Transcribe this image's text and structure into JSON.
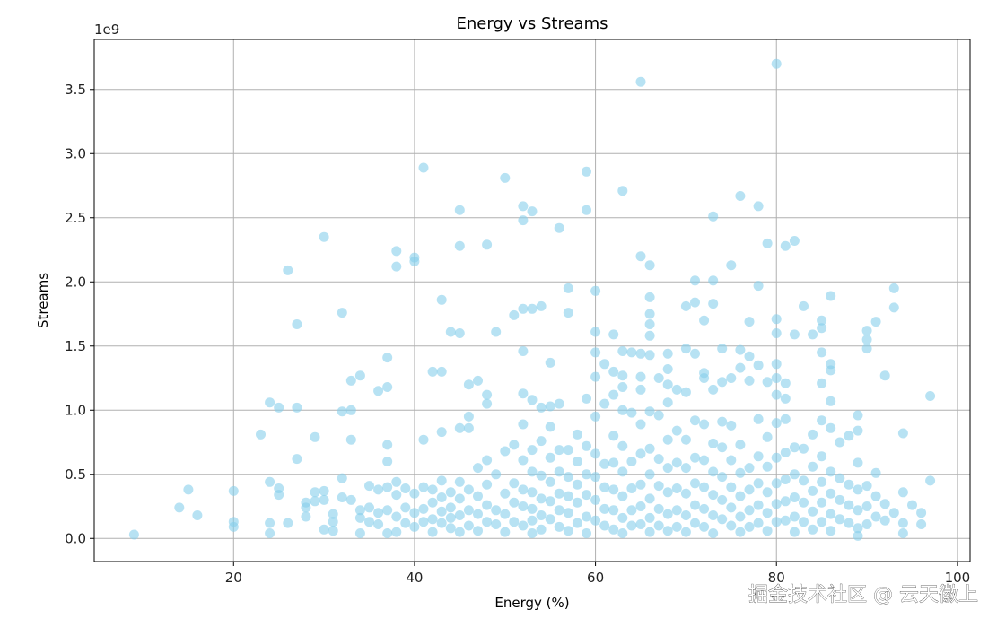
{
  "watermark": "掘金技术社区 @ 云天徽上",
  "chart_data": {
    "type": "scatter",
    "title": "Energy vs Streams",
    "xlabel": "Energy (%)",
    "ylabel": "Streams",
    "y_offset_label": "1e9",
    "xlim": [
      4.6,
      101.4
    ],
    "ylim": [
      -0.18,
      3.89
    ],
    "xticks": [
      20,
      40,
      60,
      80,
      100
    ],
    "xtick_labels": [
      "20",
      "40",
      "60",
      "80",
      "100"
    ],
    "yticks": [
      0.0,
      0.5,
      1.0,
      1.5,
      2.0,
      2.5,
      3.0,
      3.5
    ],
    "ytick_labels": [
      "0.0",
      "0.5",
      "1.0",
      "1.5",
      "2.0",
      "2.5",
      "3.0",
      "3.5"
    ],
    "grid": true,
    "marker_color": "#87ceeb",
    "marker_alpha": 0.6,
    "units": "streams x 1e9",
    "points": [
      [
        9,
        0.03
      ],
      [
        14,
        0.24
      ],
      [
        15,
        0.38
      ],
      [
        16,
        0.18
      ],
      [
        20,
        0.37
      ],
      [
        20,
        0.13
      ],
      [
        20,
        0.09
      ],
      [
        23,
        0.81
      ],
      [
        24,
        1.06
      ],
      [
        24,
        0.44
      ],
      [
        24,
        0.12
      ],
      [
        24,
        0.04
      ],
      [
        25,
        1.02
      ],
      [
        25,
        0.39
      ],
      [
        25,
        0.34
      ],
      [
        26,
        2.09
      ],
      [
        26,
        0.12
      ],
      [
        27,
        1.67
      ],
      [
        27,
        1.02
      ],
      [
        27,
        0.62
      ],
      [
        28,
        0.28
      ],
      [
        28,
        0.24
      ],
      [
        28,
        0.17
      ],
      [
        29,
        0.79
      ],
      [
        29,
        0.36
      ],
      [
        29,
        0.29
      ],
      [
        30,
        2.35
      ],
      [
        30,
        0.37
      ],
      [
        30,
        0.07
      ],
      [
        30,
        0.3
      ],
      [
        31,
        0.19
      ],
      [
        31,
        0.13
      ],
      [
        31,
        0.06
      ],
      [
        32,
        1.76
      ],
      [
        32,
        0.99
      ],
      [
        32,
        0.47
      ],
      [
        32,
        0.32
      ],
      [
        33,
        1.23
      ],
      [
        33,
        1.0
      ],
      [
        33,
        0.77
      ],
      [
        33,
        0.3
      ],
      [
        34,
        1.27
      ],
      [
        34,
        0.22
      ],
      [
        34,
        0.16
      ],
      [
        34,
        0.04
      ],
      [
        35,
        0.41
      ],
      [
        35,
        0.24
      ],
      [
        35,
        0.13
      ],
      [
        36,
        1.15
      ],
      [
        36,
        0.38
      ],
      [
        36,
        0.2
      ],
      [
        36,
        0.11
      ],
      [
        37,
        1.41
      ],
      [
        37,
        1.18
      ],
      [
        37,
        0.73
      ],
      [
        37,
        0.6
      ],
      [
        37,
        0.4
      ],
      [
        37,
        0.22
      ],
      [
        37,
        0.04
      ],
      [
        38,
        2.24
      ],
      [
        38,
        2.12
      ],
      [
        38,
        0.44
      ],
      [
        38,
        0.34
      ],
      [
        38,
        0.17
      ],
      [
        38,
        0.05
      ],
      [
        39,
        0.39
      ],
      [
        39,
        0.24
      ],
      [
        39,
        0.12
      ],
      [
        40,
        2.19
      ],
      [
        40,
        2.16
      ],
      [
        40,
        0.35
      ],
      [
        40,
        0.2
      ],
      [
        40,
        0.09
      ],
      [
        41,
        2.89
      ],
      [
        41,
        0.77
      ],
      [
        41,
        0.4
      ],
      [
        41,
        0.23
      ],
      [
        41,
        0.13
      ],
      [
        42,
        1.3
      ],
      [
        42,
        0.38
      ],
      [
        42,
        0.28
      ],
      [
        42,
        0.15
      ],
      [
        42,
        0.05
      ],
      [
        43,
        1.86
      ],
      [
        43,
        1.3
      ],
      [
        43,
        0.83
      ],
      [
        43,
        0.45
      ],
      [
        43,
        0.32
      ],
      [
        43,
        0.21
      ],
      [
        43,
        0.12
      ],
      [
        44,
        1.61
      ],
      [
        44,
        0.36
      ],
      [
        44,
        0.24
      ],
      [
        44,
        0.16
      ],
      [
        44,
        0.08
      ],
      [
        45,
        2.56
      ],
      [
        45,
        2.28
      ],
      [
        45,
        1.6
      ],
      [
        45,
        0.86
      ],
      [
        45,
        0.44
      ],
      [
        45,
        0.31
      ],
      [
        45,
        0.18
      ],
      [
        45,
        0.05
      ],
      [
        46,
        1.2
      ],
      [
        46,
        0.95
      ],
      [
        46,
        0.86
      ],
      [
        46,
        0.38
      ],
      [
        46,
        0.22
      ],
      [
        46,
        0.1
      ],
      [
        47,
        1.23
      ],
      [
        47,
        0.55
      ],
      [
        47,
        0.33
      ],
      [
        47,
        0.19
      ],
      [
        47,
        0.06
      ],
      [
        48,
        2.29
      ],
      [
        48,
        1.12
      ],
      [
        48,
        1.05
      ],
      [
        48,
        0.61
      ],
      [
        48,
        0.42
      ],
      [
        48,
        0.26
      ],
      [
        48,
        0.13
      ],
      [
        49,
        1.61
      ],
      [
        49,
        0.5
      ],
      [
        49,
        0.22
      ],
      [
        49,
        0.11
      ],
      [
        50,
        2.81
      ],
      [
        50,
        0.68
      ],
      [
        50,
        0.35
      ],
      [
        50,
        0.19
      ],
      [
        50,
        0.05
      ],
      [
        51,
        1.74
      ],
      [
        51,
        0.73
      ],
      [
        51,
        0.43
      ],
      [
        51,
        0.28
      ],
      [
        51,
        0.13
      ],
      [
        52,
        2.59
      ],
      [
        52,
        2.48
      ],
      [
        52,
        1.79
      ],
      [
        52,
        1.46
      ],
      [
        52,
        1.13
      ],
      [
        52,
        0.89
      ],
      [
        52,
        0.61
      ],
      [
        52,
        0.38
      ],
      [
        52,
        0.25
      ],
      [
        52,
        0.1
      ],
      [
        53,
        2.55
      ],
      [
        53,
        1.79
      ],
      [
        53,
        1.08
      ],
      [
        53,
        0.69
      ],
      [
        53,
        0.52
      ],
      [
        53,
        0.36
      ],
      [
        53,
        0.23
      ],
      [
        53,
        0.14
      ],
      [
        53,
        0.04
      ],
      [
        54,
        1.81
      ],
      [
        54,
        1.02
      ],
      [
        54,
        0.76
      ],
      [
        54,
        0.49
      ],
      [
        54,
        0.31
      ],
      [
        54,
        0.18
      ],
      [
        54,
        0.07
      ],
      [
        55,
        1.37
      ],
      [
        55,
        1.03
      ],
      [
        55,
        0.87
      ],
      [
        55,
        0.63
      ],
      [
        55,
        0.44
      ],
      [
        55,
        0.29
      ],
      [
        55,
        0.15
      ],
      [
        56,
        2.42
      ],
      [
        56,
        1.05
      ],
      [
        56,
        0.69
      ],
      [
        56,
        0.52
      ],
      [
        56,
        0.35
      ],
      [
        56,
        0.22
      ],
      [
        56,
        0.09
      ],
      [
        57,
        1.95
      ],
      [
        57,
        1.76
      ],
      [
        57,
        0.69
      ],
      [
        57,
        0.48
      ],
      [
        57,
        0.33
      ],
      [
        57,
        0.2
      ],
      [
        57,
        0.06
      ],
      [
        58,
        0.81
      ],
      [
        58,
        0.6
      ],
      [
        58,
        0.42
      ],
      [
        58,
        0.28
      ],
      [
        58,
        0.12
      ],
      [
        59,
        2.86
      ],
      [
        59,
        2.56
      ],
      [
        59,
        1.09
      ],
      [
        59,
        0.72
      ],
      [
        59,
        0.5
      ],
      [
        59,
        0.34
      ],
      [
        59,
        0.17
      ],
      [
        59,
        0.04
      ],
      [
        60,
        1.93
      ],
      [
        60,
        1.61
      ],
      [
        60,
        1.45
      ],
      [
        60,
        1.26
      ],
      [
        60,
        0.95
      ],
      [
        60,
        0.66
      ],
      [
        60,
        0.48
      ],
      [
        60,
        0.3
      ],
      [
        60,
        0.14
      ],
      [
        61,
        1.36
      ],
      [
        61,
        1.05
      ],
      [
        61,
        0.58
      ],
      [
        61,
        0.4
      ],
      [
        61,
        0.23
      ],
      [
        61,
        0.1
      ],
      [
        62,
        1.59
      ],
      [
        62,
        1.3
      ],
      [
        62,
        1.12
      ],
      [
        62,
        0.8
      ],
      [
        62,
        0.59
      ],
      [
        62,
        0.38
      ],
      [
        62,
        0.22
      ],
      [
        62,
        0.07
      ],
      [
        63,
        2.71
      ],
      [
        63,
        1.46
      ],
      [
        63,
        1.27
      ],
      [
        63,
        1.18
      ],
      [
        63,
        1.0
      ],
      [
        63,
        0.72
      ],
      [
        63,
        0.52
      ],
      [
        63,
        0.33
      ],
      [
        63,
        0.16
      ],
      [
        63,
        0.04
      ],
      [
        64,
        1.45
      ],
      [
        64,
        0.98
      ],
      [
        64,
        0.6
      ],
      [
        64,
        0.39
      ],
      [
        64,
        0.22
      ],
      [
        64,
        0.1
      ],
      [
        65,
        3.56
      ],
      [
        65,
        2.2
      ],
      [
        65,
        1.44
      ],
      [
        65,
        1.26
      ],
      [
        65,
        1.16
      ],
      [
        65,
        0.89
      ],
      [
        65,
        0.66
      ],
      [
        65,
        0.42
      ],
      [
        65,
        0.25
      ],
      [
        65,
        0.11
      ],
      [
        66,
        2.13
      ],
      [
        66,
        1.88
      ],
      [
        66,
        1.75
      ],
      [
        66,
        1.67
      ],
      [
        66,
        1.58
      ],
      [
        66,
        1.43
      ],
      [
        66,
        0.99
      ],
      [
        66,
        0.7
      ],
      [
        66,
        0.5
      ],
      [
        66,
        0.31
      ],
      [
        66,
        0.16
      ],
      [
        66,
        0.05
      ],
      [
        67,
        1.25
      ],
      [
        67,
        0.96
      ],
      [
        67,
        0.62
      ],
      [
        67,
        0.41
      ],
      [
        67,
        0.23
      ],
      [
        67,
        0.1
      ],
      [
        68,
        1.44
      ],
      [
        68,
        1.32
      ],
      [
        68,
        1.2
      ],
      [
        68,
        1.06
      ],
      [
        68,
        0.77
      ],
      [
        68,
        0.55
      ],
      [
        68,
        0.36
      ],
      [
        68,
        0.19
      ],
      [
        68,
        0.06
      ],
      [
        69,
        1.16
      ],
      [
        69,
        0.84
      ],
      [
        69,
        0.59
      ],
      [
        69,
        0.39
      ],
      [
        69,
        0.22
      ],
      [
        69,
        0.09
      ],
      [
        70,
        1.81
      ],
      [
        70,
        1.48
      ],
      [
        70,
        1.14
      ],
      [
        70,
        0.77
      ],
      [
        70,
        0.55
      ],
      [
        70,
        0.35
      ],
      [
        70,
        0.18
      ],
      [
        70,
        0.05
      ],
      [
        71,
        2.01
      ],
      [
        71,
        1.84
      ],
      [
        71,
        1.44
      ],
      [
        71,
        0.92
      ],
      [
        71,
        0.63
      ],
      [
        71,
        0.43
      ],
      [
        71,
        0.26
      ],
      [
        71,
        0.12
      ],
      [
        72,
        1.7
      ],
      [
        72,
        1.29
      ],
      [
        72,
        1.25
      ],
      [
        72,
        0.89
      ],
      [
        72,
        0.61
      ],
      [
        72,
        0.4
      ],
      [
        72,
        0.23
      ],
      [
        72,
        0.09
      ],
      [
        73,
        2.51
      ],
      [
        73,
        2.01
      ],
      [
        73,
        1.83
      ],
      [
        73,
        1.16
      ],
      [
        73,
        0.74
      ],
      [
        73,
        0.52
      ],
      [
        73,
        0.34
      ],
      [
        73,
        0.18
      ],
      [
        73,
        0.04
      ],
      [
        74,
        1.48
      ],
      [
        74,
        1.22
      ],
      [
        74,
        0.91
      ],
      [
        74,
        0.71
      ],
      [
        74,
        0.48
      ],
      [
        74,
        0.3
      ],
      [
        74,
        0.15
      ],
      [
        75,
        2.13
      ],
      [
        75,
        1.25
      ],
      [
        75,
        0.88
      ],
      [
        75,
        0.61
      ],
      [
        75,
        0.4
      ],
      [
        75,
        0.24
      ],
      [
        75,
        0.1
      ],
      [
        76,
        2.67
      ],
      [
        76,
        1.47
      ],
      [
        76,
        1.33
      ],
      [
        76,
        0.73
      ],
      [
        76,
        0.51
      ],
      [
        76,
        0.33
      ],
      [
        76,
        0.17
      ],
      [
        76,
        0.05
      ],
      [
        77,
        1.69
      ],
      [
        77,
        1.42
      ],
      [
        77,
        1.23
      ],
      [
        77,
        0.55
      ],
      [
        77,
        0.38
      ],
      [
        77,
        0.22
      ],
      [
        77,
        0.09
      ],
      [
        78,
        2.59
      ],
      [
        78,
        1.97
      ],
      [
        78,
        1.35
      ],
      [
        78,
        0.93
      ],
      [
        78,
        0.64
      ],
      [
        78,
        0.43
      ],
      [
        78,
        0.26
      ],
      [
        78,
        0.12
      ],
      [
        79,
        2.3
      ],
      [
        79,
        1.22
      ],
      [
        79,
        0.79
      ],
      [
        79,
        0.56
      ],
      [
        79,
        0.36
      ],
      [
        79,
        0.2
      ],
      [
        79,
        0.06
      ],
      [
        80,
        3.7
      ],
      [
        80,
        1.71
      ],
      [
        80,
        1.6
      ],
      [
        80,
        1.36
      ],
      [
        80,
        1.25
      ],
      [
        80,
        1.12
      ],
      [
        80,
        0.9
      ],
      [
        80,
        0.63
      ],
      [
        80,
        0.43
      ],
      [
        80,
        0.27
      ],
      [
        80,
        0.13
      ],
      [
        81,
        2.28
      ],
      [
        81,
        1.21
      ],
      [
        81,
        1.09
      ],
      [
        81,
        0.93
      ],
      [
        81,
        0.67
      ],
      [
        81,
        0.46
      ],
      [
        81,
        0.29
      ],
      [
        81,
        0.14
      ],
      [
        82,
        2.32
      ],
      [
        82,
        1.59
      ],
      [
        82,
        0.71
      ],
      [
        82,
        0.5
      ],
      [
        82,
        0.32
      ],
      [
        82,
        0.17
      ],
      [
        82,
        0.05
      ],
      [
        83,
        1.81
      ],
      [
        83,
        0.7
      ],
      [
        83,
        0.45
      ],
      [
        83,
        0.28
      ],
      [
        83,
        0.13
      ],
      [
        84,
        1.59
      ],
      [
        84,
        0.81
      ],
      [
        84,
        0.56
      ],
      [
        84,
        0.37
      ],
      [
        84,
        0.21
      ],
      [
        84,
        0.07
      ],
      [
        85,
        1.7
      ],
      [
        85,
        1.64
      ],
      [
        85,
        1.45
      ],
      [
        85,
        1.21
      ],
      [
        85,
        0.92
      ],
      [
        85,
        0.64
      ],
      [
        85,
        0.44
      ],
      [
        85,
        0.28
      ],
      [
        85,
        0.13
      ],
      [
        86,
        1.89
      ],
      [
        86,
        1.36
      ],
      [
        86,
        1.31
      ],
      [
        86,
        1.07
      ],
      [
        86,
        0.86
      ],
      [
        86,
        0.52
      ],
      [
        86,
        0.35
      ],
      [
        86,
        0.19
      ],
      [
        86,
        0.06
      ],
      [
        87,
        0.75
      ],
      [
        87,
        0.47
      ],
      [
        87,
        0.3
      ],
      [
        87,
        0.15
      ],
      [
        88,
        0.8
      ],
      [
        88,
        0.42
      ],
      [
        88,
        0.26
      ],
      [
        88,
        0.12
      ],
      [
        89,
        0.96
      ],
      [
        89,
        0.84
      ],
      [
        89,
        0.59
      ],
      [
        89,
        0.38
      ],
      [
        89,
        0.22
      ],
      [
        89,
        0.08
      ],
      [
        89,
        0.02
      ],
      [
        90,
        1.62
      ],
      [
        90,
        1.55
      ],
      [
        90,
        1.48
      ],
      [
        90,
        0.41
      ],
      [
        90,
        0.25
      ],
      [
        90,
        0.11
      ],
      [
        91,
        1.69
      ],
      [
        91,
        0.51
      ],
      [
        91,
        0.33
      ],
      [
        91,
        0.17
      ],
      [
        92,
        1.27
      ],
      [
        92,
        0.27
      ],
      [
        92,
        0.14
      ],
      [
        93,
        1.95
      ],
      [
        93,
        1.8
      ],
      [
        93,
        0.2
      ],
      [
        94,
        0.82
      ],
      [
        94,
        0.36
      ],
      [
        94,
        0.12
      ],
      [
        94,
        0.04
      ],
      [
        95,
        0.26
      ],
      [
        96,
        0.2
      ],
      [
        96,
        0.11
      ],
      [
        97,
        1.11
      ],
      [
        97,
        0.45
      ]
    ]
  }
}
